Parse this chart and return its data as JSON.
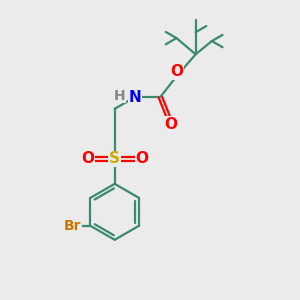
{
  "background_color": "#ebebeb",
  "bond_color": "#3a8a6e",
  "bond_width": 1.6,
  "atom_colors": {
    "N": "#0000ff",
    "O": "#ff0000",
    "S": "#ccaa00",
    "Br": "#cc7700",
    "H_label": "#888888",
    "C": "#000000"
  },
  "font_size_atoms": 11,
  "font_size_br": 10,
  "font_size_h": 10,
  "figsize": [
    3.0,
    3.0
  ],
  "dpi": 100
}
